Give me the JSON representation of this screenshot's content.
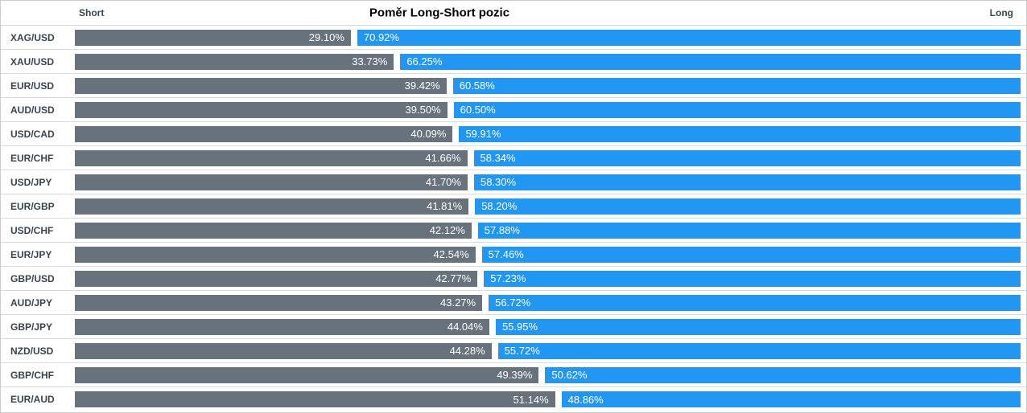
{
  "header": {
    "title": "Poměr Long-Short pozic",
    "short_axis_label": "Short",
    "long_axis_label": "Long"
  },
  "colors": {
    "short_bar": "#67727d",
    "long_bar": "#2196f3",
    "bar_text": "#ffffff",
    "pair_label_text": "#39444e",
    "separator": "#d9d9d9",
    "outer_border": "#cccccc"
  },
  "chart_data": {
    "type": "bar",
    "orientation": "horizontal-diverging",
    "title": "Poměr Long-Short pozic",
    "xlim": [
      0,
      100
    ],
    "grid": false,
    "legend_position": "top-axis-labels",
    "categories": [
      "XAG/USD",
      "XAU/USD",
      "EUR/USD",
      "AUD/USD",
      "USD/CAD",
      "EUR/CHF",
      "USD/JPY",
      "EUR/GBP",
      "USD/CHF",
      "EUR/JPY",
      "GBP/USD",
      "AUD/JPY",
      "GBP/JPY",
      "NZD/USD",
      "GBP/CHF",
      "EUR/AUD"
    ],
    "series": [
      {
        "name": "Short",
        "color": "#67727d",
        "values": [
          29.1,
          33.73,
          39.42,
          39.5,
          40.09,
          41.66,
          41.7,
          41.81,
          42.12,
          42.54,
          42.77,
          43.27,
          44.04,
          44.28,
          49.39,
          51.14
        ],
        "labels": [
          "29.10%",
          "33.73%",
          "39.42%",
          "39.50%",
          "40.09%",
          "41.66%",
          "41.70%",
          "41.81%",
          "42.12%",
          "42.54%",
          "42.77%",
          "43.27%",
          "44.04%",
          "44.28%",
          "49.39%",
          "51.14%"
        ]
      },
      {
        "name": "Long",
        "color": "#2196f3",
        "values": [
          70.92,
          66.25,
          60.58,
          60.5,
          59.91,
          58.34,
          58.3,
          58.2,
          57.88,
          57.46,
          57.23,
          56.72,
          55.95,
          55.72,
          50.62,
          48.86
        ],
        "labels": [
          "70.92%",
          "66.25%",
          "60.58%",
          "60.50%",
          "59.91%",
          "58.34%",
          "58.30%",
          "58.20%",
          "57.88%",
          "57.46%",
          "57.23%",
          "56.72%",
          "55.95%",
          "55.72%",
          "50.62%",
          "48.86%"
        ]
      }
    ]
  }
}
